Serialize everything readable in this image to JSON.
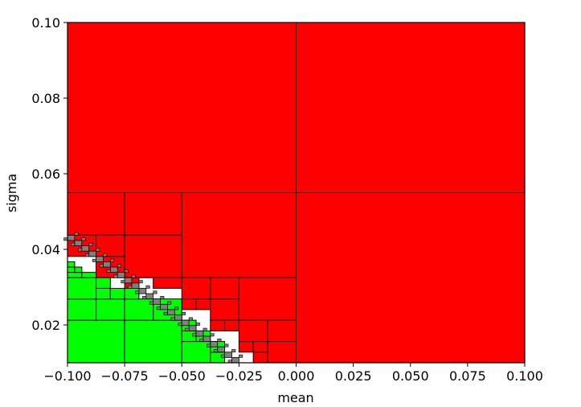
{
  "chart_data": {
    "type": "heatmap",
    "title": "",
    "xlabel": "mean",
    "ylabel": "sigma",
    "xlim": [
      -0.1,
      0.1
    ],
    "ylim": [
      0.01,
      0.1
    ],
    "grid": false,
    "x_ticks": [
      "−0.100",
      "−0.075",
      "−0.050",
      "−0.025",
      "0.000",
      "0.025",
      "0.050",
      "0.075",
      "0.100"
    ],
    "y_ticks": [
      "0.02",
      "0.04",
      "0.06",
      "0.08",
      "0.10"
    ],
    "colors": {
      "red": "#ff0000",
      "green": "#00ff00",
      "gray": "#808080",
      "edge": "#000000"
    },
    "cells": [
      {
        "x0": -0.1,
        "x1": 0.0,
        "y0": 0.055,
        "y1": 0.1,
        "color": "red"
      },
      {
        "x0": 0.0,
        "x1": 0.1,
        "y0": 0.055,
        "y1": 0.1,
        "color": "red"
      },
      {
        "x0": 0.0,
        "x1": 0.1,
        "y0": 0.01,
        "y1": 0.055,
        "color": "red"
      },
      {
        "x0": -0.05,
        "x1": 0.0,
        "y0": 0.0325,
        "y1": 0.055,
        "color": "red"
      },
      {
        "x0": -0.075,
        "x1": -0.05,
        "y0": 0.04375,
        "y1": 0.055,
        "color": "red"
      },
      {
        "x0": -0.1,
        "x1": -0.075,
        "y0": 0.04375,
        "y1": 0.055,
        "color": "red"
      },
      {
        "x0": -0.075,
        "x1": -0.05,
        "y0": 0.0325,
        "y1": 0.04375,
        "color": "red"
      },
      {
        "x0": -0.1,
        "x1": -0.0875,
        "y0": 0.038125,
        "y1": 0.04375,
        "color": "red"
      },
      {
        "x0": -0.0875,
        "x1": -0.075,
        "y0": 0.038125,
        "y1": 0.04375,
        "color": "red"
      },
      {
        "x0": -0.0875,
        "x1": -0.075,
        "y0": 0.0325,
        "y1": 0.038125,
        "color": "red"
      },
      {
        "x0": -0.025,
        "x1": 0.0,
        "y0": 0.02125,
        "y1": 0.0325,
        "color": "red"
      },
      {
        "x0": -0.0375,
        "x1": -0.025,
        "y0": 0.026875,
        "y1": 0.0325,
        "color": "red"
      },
      {
        "x0": -0.05,
        "x1": -0.0375,
        "y0": 0.026875,
        "y1": 0.0325,
        "color": "red"
      },
      {
        "x0": -0.0375,
        "x1": -0.025,
        "y0": 0.02125,
        "y1": 0.026875,
        "color": "red"
      },
      {
        "x0": -0.0125,
        "x1": 0.0,
        "y0": 0.015625,
        "y1": 0.02125,
        "color": "red"
      },
      {
        "x0": -0.025,
        "x1": -0.0125,
        "y0": 0.015625,
        "y1": 0.02125,
        "color": "red"
      },
      {
        "x0": -0.0125,
        "x1": 0.0,
        "y0": 0.01,
        "y1": 0.015625,
        "color": "red"
      },
      {
        "x0": -0.01875,
        "x1": -0.0125,
        "y0": 0.0128125,
        "y1": 0.015625,
        "color": "red"
      },
      {
        "x0": -0.01875,
        "x1": -0.0125,
        "y0": 0.01,
        "y1": 0.0128125,
        "color": "red"
      },
      {
        "x0": -0.025,
        "x1": -0.01875,
        "y0": 0.0128125,
        "y1": 0.015625,
        "color": "red"
      },
      {
        "x0": -0.0625,
        "x1": -0.05,
        "y0": 0.029688,
        "y1": 0.0325,
        "color": "red"
      },
      {
        "x0": -0.05,
        "x1": -0.04375,
        "y0": 0.024063,
        "y1": 0.026875,
        "color": "red"
      },
      {
        "x0": -0.04375,
        "x1": -0.0375,
        "y0": 0.024063,
        "y1": 0.026875,
        "color": "red"
      },
      {
        "x0": -0.075,
        "x1": -0.06875,
        "y0": 0.029688,
        "y1": 0.0325,
        "color": "red"
      },
      {
        "x0": -0.0375,
        "x1": -0.03125,
        "y0": 0.018438,
        "y1": 0.02125,
        "color": "red"
      },
      {
        "x0": -0.03125,
        "x1": -0.025,
        "y0": 0.018438,
        "y1": 0.02125,
        "color": "red"
      },
      {
        "x0": -0.1,
        "x1": -0.075,
        "y0": 0.01,
        "y1": 0.02125,
        "color": "green"
      },
      {
        "x0": -0.075,
        "x1": -0.05,
        "y0": 0.01,
        "y1": 0.02125,
        "color": "green"
      },
      {
        "x0": -0.1,
        "x1": -0.0875,
        "y0": 0.02125,
        "y1": 0.026875,
        "color": "green"
      },
      {
        "x0": -0.0875,
        "x1": -0.075,
        "y0": 0.02125,
        "y1": 0.026875,
        "color": "green"
      },
      {
        "x0": -0.1,
        "x1": -0.0875,
        "y0": 0.026875,
        "y1": 0.0325,
        "color": "green"
      },
      {
        "x0": -0.0875,
        "x1": -0.08125,
        "y0": 0.029688,
        "y1": 0.0325,
        "color": "green"
      },
      {
        "x0": -0.0875,
        "x1": -0.08125,
        "y0": 0.026875,
        "y1": 0.029688,
        "color": "green"
      },
      {
        "x0": -0.08125,
        "x1": -0.075,
        "y0": 0.026875,
        "y1": 0.029688,
        "color": "green"
      },
      {
        "x0": -0.075,
        "x1": -0.0625,
        "y0": 0.02125,
        "y1": 0.026875,
        "color": "green"
      },
      {
        "x0": -0.0625,
        "x1": -0.05,
        "y0": 0.02125,
        "y1": 0.026875,
        "color": "green"
      },
      {
        "x0": -0.075,
        "x1": -0.06875,
        "y0": 0.026875,
        "y1": 0.029688,
        "color": "green"
      },
      {
        "x0": -0.05,
        "x1": -0.0375,
        "y0": 0.01,
        "y1": 0.015625,
        "color": "green"
      },
      {
        "x0": -0.05,
        "x1": -0.04375,
        "y0": 0.015625,
        "y1": 0.018438,
        "color": "green"
      },
      {
        "x0": -0.05,
        "x1": -0.04375,
        "y0": 0.018438,
        "y1": 0.02125,
        "color": "green"
      },
      {
        "x0": -0.04375,
        "x1": -0.0375,
        "y0": 0.015625,
        "y1": 0.018438,
        "color": "green"
      },
      {
        "x0": -0.0375,
        "x1": -0.03125,
        "y0": 0.01,
        "y1": 0.012813,
        "color": "green"
      },
      {
        "x0": -0.0375,
        "x1": -0.03125,
        "y0": 0.012813,
        "y1": 0.015625,
        "color": "green"
      },
      {
        "x0": -0.1,
        "x1": -0.096875,
        "y0": 0.035313,
        "y1": 0.036719,
        "color": "green"
      },
      {
        "x0": -0.1,
        "x1": -0.096875,
        "y0": 0.033906,
        "y1": 0.035313,
        "color": "green"
      },
      {
        "x0": -0.1,
        "x1": -0.09375,
        "y0": 0.0325,
        "y1": 0.033906,
        "color": "green"
      },
      {
        "x0": -0.096875,
        "x1": -0.09375,
        "y0": 0.033906,
        "y1": 0.035313,
        "color": "green"
      },
      {
        "x0": -0.09375,
        "x1": -0.0875,
        "y0": 0.0325,
        "y1": 0.033906,
        "color": "green"
      }
    ],
    "boundary_diagonal": {
      "x_start": -0.1,
      "y_start": 0.04375,
      "x_end": -0.025,
      "y_end": 0.01,
      "color": "gray"
    }
  }
}
